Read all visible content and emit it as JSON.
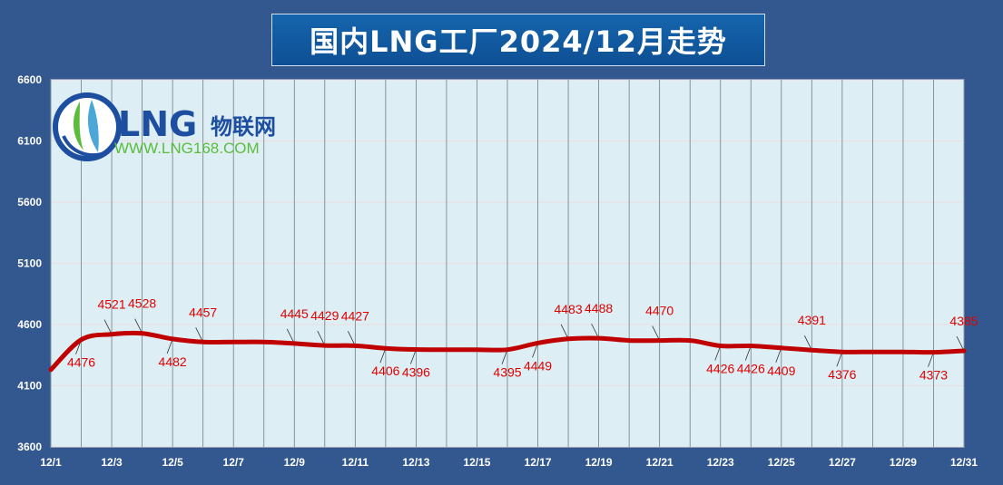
{
  "title": "国内LNG工厂2024/12月走势",
  "logo": {
    "brand": "LNG",
    "name": "物联网",
    "url": "WWW.LNG168.COM",
    "icon": "lng-droplet-logo-icon"
  },
  "colors": {
    "background": "#33588f",
    "plot_area": "#ddeef4",
    "line": "#c00000",
    "data_label": "#e00000",
    "title_box": "#1565ad"
  },
  "chart_data": {
    "type": "line",
    "title": "国内LNG工厂2024/12月走势",
    "ylim": [
      3600,
      6600
    ],
    "yticks": [
      "3600",
      "4100",
      "4600",
      "5100",
      "5600",
      "6100",
      "6600"
    ],
    "xlim": [
      1,
      31
    ],
    "xticks": [
      "12/1",
      "12/3",
      "12/5",
      "12/7",
      "12/9",
      "12/11",
      "12/13",
      "12/15",
      "12/17",
      "12/19",
      "12/21",
      "12/23",
      "12/25",
      "12/27",
      "12/29",
      "12/31"
    ],
    "grid": "vertical lines each day",
    "series": [
      {
        "x": [
          1,
          2,
          3,
          4,
          5,
          6,
          7,
          8,
          9,
          10,
          11,
          12,
          13,
          14,
          15,
          16,
          17,
          18,
          19,
          20,
          21,
          22,
          23,
          24,
          25,
          26,
          27,
          28,
          29,
          30,
          31
        ],
        "values": [
          4230,
          4476,
          4521,
          4528,
          4482,
          4457,
          4457,
          4457,
          4445,
          4429,
          4427,
          4406,
          4396,
          4395,
          4395,
          4395,
          4449,
          4483,
          4488,
          4470,
          4470,
          4470,
          4426,
          4426,
          4409,
          4391,
          4376,
          4376,
          4376,
          4373,
          4385
        ]
      }
    ],
    "data_labels": [
      {
        "day": 2,
        "text": "4476",
        "pos": "below"
      },
      {
        "day": 3,
        "text": "4521",
        "pos": "above"
      },
      {
        "day": 4,
        "text": "4528",
        "pos": "above"
      },
      {
        "day": 5,
        "text": "4482",
        "pos": "below"
      },
      {
        "day": 6,
        "text": "4457",
        "pos": "above"
      },
      {
        "day": 9,
        "text": "4445",
        "pos": "above"
      },
      {
        "day": 10,
        "text": "4429",
        "pos": "above"
      },
      {
        "day": 11,
        "text": "4427",
        "pos": "above"
      },
      {
        "day": 12,
        "text": "4406",
        "pos": "below"
      },
      {
        "day": 13,
        "text": "4396",
        "pos": "below"
      },
      {
        "day": 16,
        "text": "4395",
        "pos": "below"
      },
      {
        "day": 17,
        "text": "4449",
        "pos": "below"
      },
      {
        "day": 18,
        "text": "4483",
        "pos": "above"
      },
      {
        "day": 19,
        "text": "4488",
        "pos": "above"
      },
      {
        "day": 21,
        "text": "4470",
        "pos": "above"
      },
      {
        "day": 23,
        "text": "4426",
        "pos": "below"
      },
      {
        "day": 24,
        "text": "4426",
        "pos": "below"
      },
      {
        "day": 25,
        "text": "4409",
        "pos": "below"
      },
      {
        "day": 26,
        "text": "4391",
        "pos": "above"
      },
      {
        "day": 27,
        "text": "4376",
        "pos": "below"
      },
      {
        "day": 30,
        "text": "4373",
        "pos": "below"
      },
      {
        "day": 31,
        "text": "4385",
        "pos": "above"
      }
    ]
  }
}
